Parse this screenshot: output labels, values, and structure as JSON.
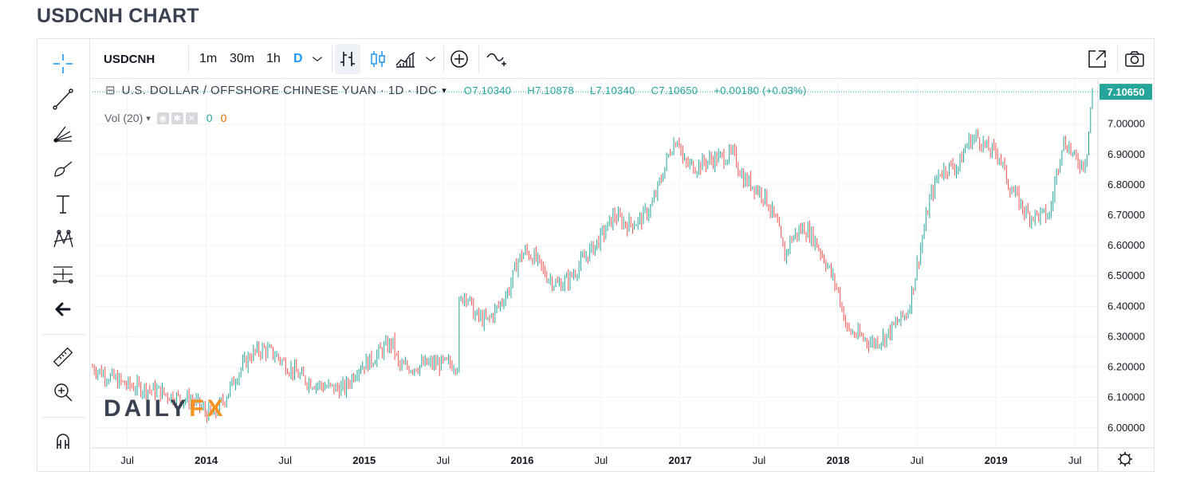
{
  "page": {
    "title": "USDCNH CHART"
  },
  "toolbar": {
    "symbol": "USDCNH",
    "intervals": [
      "1m",
      "30m",
      "1h",
      "D"
    ],
    "active_interval": "D",
    "icons": [
      "chevron-down-icon",
      "bar-style-icon",
      "candles-icon",
      "area-style-icon",
      "chevron-down-icon",
      "add-compare-icon",
      "indicators-icon",
      "fullscreen-icon",
      "snapshot-icon"
    ]
  },
  "left_tools": [
    "crosshair-icon",
    "trend-line-icon",
    "fib-icon",
    "brush-icon",
    "text-icon",
    "pattern-icon",
    "measure-prediction-icon",
    "back-arrow-icon",
    "ruler-icon",
    "zoom-icon",
    "magnet-icon"
  ],
  "legend": {
    "title": "U.S. DOLLAR / OFFSHORE CHINESE YUAN · 1D · IDC",
    "o_label": "O",
    "o": "7.10340",
    "h_label": "H",
    "h": "7.10878",
    "l_label": "L",
    "l": "7.10340",
    "c_label": "C",
    "c": "7.10650",
    "change": "+0.00180 (+0.03%)"
  },
  "volume": {
    "label": "Vol (20)",
    "value_up": "0",
    "value_down": "0"
  },
  "watermark": {
    "part1": "DAILY",
    "part2": "FX"
  },
  "last_price_label": "7.10650",
  "colors": {
    "up": "#26a69a",
    "down": "#ef5350",
    "accent": "#2196f3",
    "badge": "#26a69a"
  },
  "chart_data": {
    "type": "line",
    "series_style": "candlestick",
    "ylim": [
      5.96,
      7.12
    ],
    "y_ticks": [
      "6.00000",
      "6.10000",
      "6.20000",
      "6.30000",
      "6.40000",
      "6.50000",
      "6.60000",
      "6.70000",
      "6.80000",
      "6.90000",
      "7.00000"
    ],
    "x_ticks": [
      {
        "label": "Jul",
        "t": 2013.5
      },
      {
        "label": "2014",
        "t": 2014.0
      },
      {
        "label": "Jul",
        "t": 2014.5
      },
      {
        "label": "2015",
        "t": 2015.0
      },
      {
        "label": "Jul",
        "t": 2015.5
      },
      {
        "label": "2016",
        "t": 2016.0
      },
      {
        "label": "Jul",
        "t": 2016.5
      },
      {
        "label": "2017",
        "t": 2017.0
      },
      {
        "label": "Jul",
        "t": 2017.5
      },
      {
        "label": "2018",
        "t": 2018.0
      },
      {
        "label": "Jul",
        "t": 2018.5
      },
      {
        "label": "2019",
        "t": 2019.0
      },
      {
        "label": "Jul",
        "t": 2019.5
      }
    ],
    "x_range": [
      2013.28,
      2019.61
    ],
    "points": [
      [
        2013.28,
        6.2
      ],
      [
        2013.38,
        6.17
      ],
      [
        2013.5,
        6.14
      ],
      [
        2013.6,
        6.13
      ],
      [
        2013.7,
        6.12
      ],
      [
        2013.8,
        6.1
      ],
      [
        2013.92,
        6.09
      ],
      [
        2014.0,
        6.05
      ],
      [
        2014.05,
        6.04
      ],
      [
        2014.12,
        6.1
      ],
      [
        2014.2,
        6.18
      ],
      [
        2014.28,
        6.24
      ],
      [
        2014.36,
        6.26
      ],
      [
        2014.44,
        6.24
      ],
      [
        2014.52,
        6.2
      ],
      [
        2014.62,
        6.16
      ],
      [
        2014.72,
        6.14
      ],
      [
        2014.8,
        6.13
      ],
      [
        2014.88,
        6.13
      ],
      [
        2014.96,
        6.2
      ],
      [
        2015.04,
        6.22
      ],
      [
        2015.12,
        6.26
      ],
      [
        2015.18,
        6.28
      ],
      [
        2015.22,
        6.2
      ],
      [
        2015.3,
        6.2
      ],
      [
        2015.4,
        6.21
      ],
      [
        2015.48,
        6.21
      ],
      [
        2015.59,
        6.21
      ],
      [
        2015.6,
        6.4
      ],
      [
        2015.64,
        6.45
      ],
      [
        2015.7,
        6.37
      ],
      [
        2015.78,
        6.35
      ],
      [
        2015.85,
        6.4
      ],
      [
        2015.92,
        6.46
      ],
      [
        2015.97,
        6.55
      ],
      [
        2016.02,
        6.58
      ],
      [
        2016.08,
        6.56
      ],
      [
        2016.14,
        6.51
      ],
      [
        2016.22,
        6.47
      ],
      [
        2016.3,
        6.49
      ],
      [
        2016.38,
        6.55
      ],
      [
        2016.46,
        6.6
      ],
      [
        2016.54,
        6.66
      ],
      [
        2016.58,
        6.7
      ],
      [
        2016.66,
        6.67
      ],
      [
        2016.74,
        6.68
      ],
      [
        2016.82,
        6.73
      ],
      [
        2016.88,
        6.82
      ],
      [
        2016.94,
        6.92
      ],
      [
        2016.99,
        6.96
      ],
      [
        2017.02,
        6.87
      ],
      [
        2017.1,
        6.86
      ],
      [
        2017.18,
        6.88
      ],
      [
        2017.26,
        6.89
      ],
      [
        2017.34,
        6.9
      ],
      [
        2017.4,
        6.82
      ],
      [
        2017.46,
        6.8
      ],
      [
        2017.54,
        6.76
      ],
      [
        2017.62,
        6.66
      ],
      [
        2017.66,
        6.56
      ],
      [
        2017.7,
        6.62
      ],
      [
        2017.78,
        6.66
      ],
      [
        2017.84,
        6.63
      ],
      [
        2017.92,
        6.55
      ],
      [
        2018.0,
        6.45
      ],
      [
        2018.06,
        6.32
      ],
      [
        2018.14,
        6.3
      ],
      [
        2018.22,
        6.28
      ],
      [
        2018.3,
        6.3
      ],
      [
        2018.38,
        6.35
      ],
      [
        2018.44,
        6.38
      ],
      [
        2018.48,
        6.48
      ],
      [
        2018.54,
        6.64
      ],
      [
        2018.58,
        6.75
      ],
      [
        2018.64,
        6.84
      ],
      [
        2018.7,
        6.86
      ],
      [
        2018.76,
        6.86
      ],
      [
        2018.82,
        6.94
      ],
      [
        2018.88,
        6.96
      ],
      [
        2018.94,
        6.92
      ],
      [
        2019.02,
        6.9
      ],
      [
        2019.08,
        6.8
      ],
      [
        2019.14,
        6.75
      ],
      [
        2019.2,
        6.7
      ],
      [
        2019.28,
        6.7
      ],
      [
        2019.34,
        6.7
      ],
      [
        2019.38,
        6.83
      ],
      [
        2019.42,
        6.94
      ],
      [
        2019.46,
        6.93
      ],
      [
        2019.5,
        6.88
      ],
      [
        2019.56,
        6.87
      ],
      [
        2019.58,
        6.93
      ],
      [
        2019.6,
        7.06
      ],
      [
        2019.61,
        7.1065
      ]
    ],
    "last_price": 7.1065
  }
}
